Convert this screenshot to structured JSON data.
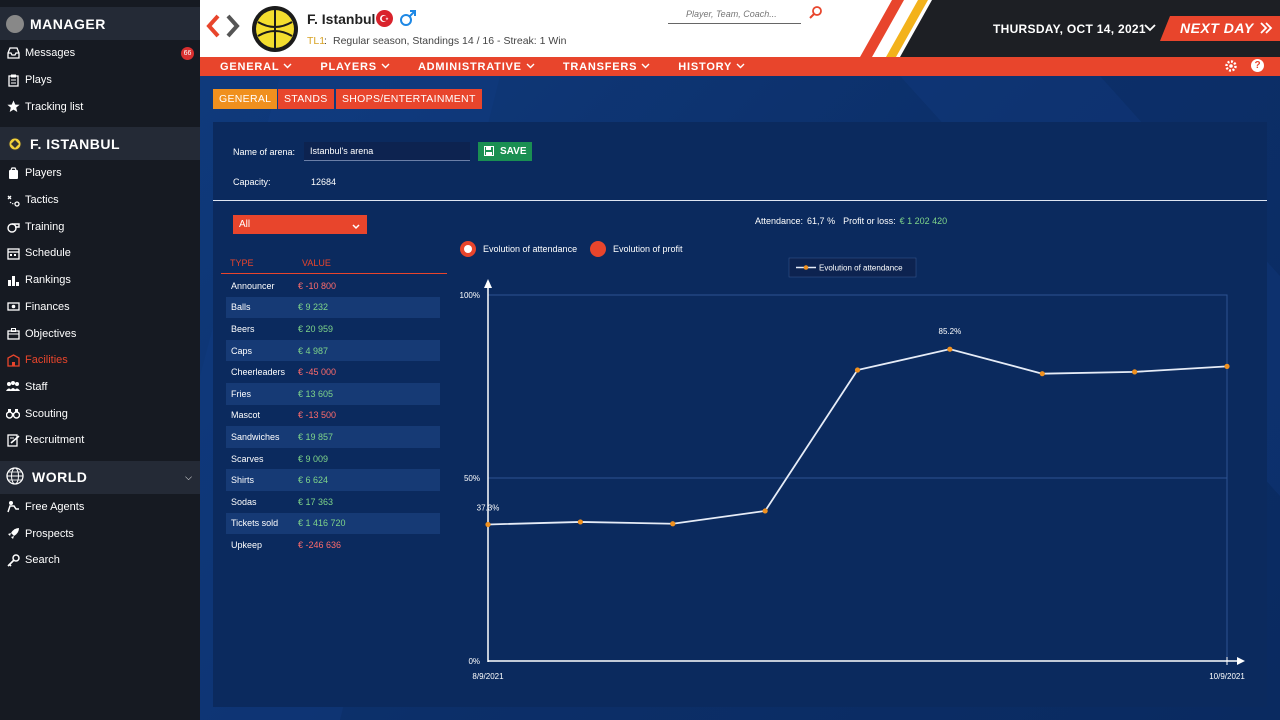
{
  "sidebar": {
    "manager_title": "MANAGER",
    "manager_items": [
      {
        "label": "Messages",
        "icon": "inbox-icon",
        "badge": "66"
      },
      {
        "label": "Plays",
        "icon": "clipboard-icon"
      },
      {
        "label": "Tracking list",
        "icon": "star-icon"
      }
    ],
    "team_title": "F. ISTANBUL",
    "team_items": [
      {
        "label": "Players",
        "icon": "players-icon"
      },
      {
        "label": "Tactics",
        "icon": "tactics-icon"
      },
      {
        "label": "Training",
        "icon": "whistle-icon"
      },
      {
        "label": "Schedule",
        "icon": "calendar-icon"
      },
      {
        "label": "Rankings",
        "icon": "rankings-icon"
      },
      {
        "label": "Finances",
        "icon": "money-icon"
      },
      {
        "label": "Objectives",
        "icon": "briefcase-icon"
      },
      {
        "label": "Facilities",
        "icon": "building-icon",
        "active": true
      },
      {
        "label": "Staff",
        "icon": "staff-icon"
      },
      {
        "label": "Scouting",
        "icon": "binoculars-icon"
      },
      {
        "label": "Recruitment",
        "icon": "contract-icon"
      }
    ],
    "world_title": "WORLD",
    "world_items": [
      {
        "label": "Free Agents",
        "icon": "free-agent-icon"
      },
      {
        "label": "Prospects",
        "icon": "rocket-icon"
      },
      {
        "label": "Search",
        "icon": "key-icon"
      }
    ]
  },
  "header": {
    "team_name": "F. Istanbul",
    "league_code": "TL1",
    "info": "Regular season, Standings 14 / 16 - Streak: 1 Win",
    "search_placeholder": "Player, Team, Coach...",
    "date": "THURSDAY, OCT 14, 2021",
    "next_day": "NEXT DAY"
  },
  "nav": {
    "items": [
      "GENERAL",
      "PLAYERS",
      "ADMINISTRATIVE",
      "TRANSFERS",
      "HISTORY"
    ]
  },
  "subtabs": [
    "GENERAL",
    "STANDS",
    "SHOPS/ENTERTAINMENT"
  ],
  "arena": {
    "name_label": "Name of arena:",
    "name_value": "Istanbul's arena",
    "save_label": "SAVE",
    "capacity_label": "Capacity:",
    "capacity_value": "12684"
  },
  "filter": {
    "selected": "All"
  },
  "summary": {
    "attendance_label": "Attendance:",
    "attendance_value": "61,7 %",
    "profit_label": "Profit or loss:",
    "profit_value": "€ 1 202 420"
  },
  "radios": {
    "attendance": "Evolution of attendance",
    "profit": "Evolution of profit"
  },
  "table": {
    "headers": [
      "TYPE",
      "VALUE"
    ],
    "rows": [
      {
        "type": "Announcer",
        "value": "€ -10 800",
        "neg": true
      },
      {
        "type": "Balls",
        "value": "€ 9 232",
        "neg": false
      },
      {
        "type": "Beers",
        "value": "€ 20 959",
        "neg": false
      },
      {
        "type": "Caps",
        "value": "€ 4 987",
        "neg": false
      },
      {
        "type": "Cheerleaders",
        "value": "€ -45 000",
        "neg": true
      },
      {
        "type": "Fries",
        "value": "€ 13 605",
        "neg": false
      },
      {
        "type": "Mascot",
        "value": "€ -13 500",
        "neg": true
      },
      {
        "type": "Sandwiches",
        "value": "€ 19 857",
        "neg": false
      },
      {
        "type": "Scarves",
        "value": "€ 9 009",
        "neg": false
      },
      {
        "type": "Shirts",
        "value": "€ 6 624",
        "neg": false
      },
      {
        "type": "Sodas",
        "value": "€ 17 363",
        "neg": false
      },
      {
        "type": "Tickets sold",
        "value": "€ 1 416 720",
        "neg": false
      },
      {
        "type": "Upkeep",
        "value": "€ -246 636",
        "neg": true
      }
    ]
  },
  "colors": {
    "accent": "#e8452c",
    "orange": "#f0901e",
    "positive": "#7fd58a",
    "negative": "#ff6b6b",
    "point": "#f0901e"
  },
  "chart_data": {
    "type": "line",
    "legend": "Evolution of attendance",
    "x_labels": [
      "8/9/2021",
      "10/9/2021"
    ],
    "y_ticks": [
      "0%",
      "50%",
      "100%"
    ],
    "ylim": [
      0,
      100
    ],
    "values": [
      37.3,
      38.0,
      37.5,
      41.0,
      79.5,
      85.2,
      78.5,
      79.0,
      80.5
    ],
    "data_labels": {
      "first": "37.3%",
      "max": "85.2%"
    }
  }
}
